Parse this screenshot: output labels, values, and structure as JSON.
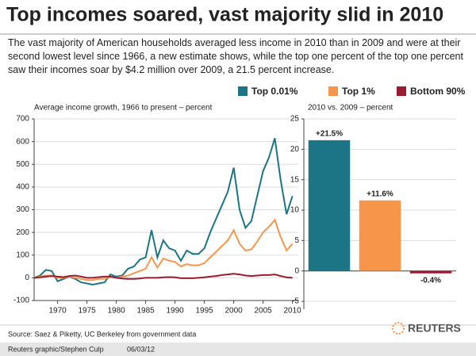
{
  "title": "Top incomes soared, vast majority slid in 2010",
  "subtitle": "The vast majority of American households averaged less income in 2010 than in 2009 and were at their second lowest level since 1966, a new estimate shows, while the top one percent of the top one percent saw their incomes soar by $4.2 million over 2009, a 21.5 percent increase.",
  "source": "Source: Saez & Piketty, UC Berkeley from government data",
  "logo": "REUTERS",
  "credit": "Reuters graphic/Stephen Culp",
  "date": "06/03/12",
  "chart_data": [
    {
      "type": "line",
      "title": "Average income growth, 1966 to present – percent",
      "x": [
        1966,
        1967,
        1968,
        1969,
        1970,
        1971,
        1972,
        1973,
        1974,
        1975,
        1976,
        1977,
        1978,
        1979,
        1980,
        1981,
        1982,
        1983,
        1984,
        1985,
        1986,
        1987,
        1988,
        1989,
        1990,
        1991,
        1992,
        1993,
        1994,
        1995,
        1996,
        1997,
        1998,
        1999,
        2000,
        2001,
        2002,
        2003,
        2004,
        2005,
        2006,
        2007,
        2008,
        2009,
        2010
      ],
      "series": [
        {
          "name": "Top 0.01%",
          "color": "#1b7585",
          "values": [
            0,
            10,
            35,
            30,
            -15,
            -5,
            5,
            -5,
            -20,
            -25,
            -30,
            -25,
            -20,
            15,
            5,
            10,
            40,
            50,
            80,
            90,
            210,
            90,
            165,
            130,
            120,
            75,
            120,
            105,
            105,
            130,
            200,
            260,
            320,
            380,
            485,
            300,
            220,
            250,
            360,
            470,
            530,
            615,
            430,
            280,
            360
          ]
        },
        {
          "name": "Top 1%",
          "color": "#f7964a",
          "values": [
            0,
            5,
            10,
            10,
            0,
            0,
            5,
            0,
            -5,
            -10,
            -10,
            -5,
            -5,
            5,
            0,
            5,
            10,
            20,
            30,
            40,
            90,
            45,
            85,
            75,
            70,
            50,
            60,
            55,
            55,
            65,
            90,
            115,
            140,
            165,
            210,
            150,
            120,
            125,
            160,
            200,
            225,
            255,
            180,
            120,
            150
          ]
        },
        {
          "name": "Bottom 90%",
          "color": "#9b1b30",
          "values": [
            0,
            2,
            5,
            8,
            5,
            3,
            8,
            10,
            5,
            0,
            0,
            3,
            5,
            5,
            0,
            -3,
            -5,
            -5,
            -3,
            0,
            0,
            0,
            2,
            3,
            2,
            -2,
            -2,
            -2,
            0,
            2,
            5,
            8,
            12,
            15,
            18,
            15,
            10,
            8,
            10,
            12,
            12,
            15,
            8,
            2,
            0
          ]
        }
      ],
      "xlim": [
        1966,
        2011
      ],
      "xticks": [
        1970,
        1975,
        1980,
        1985,
        1990,
        1995,
        2000,
        2005,
        2010
      ],
      "ylim": [
        -100,
        700
      ],
      "yticks": [
        -100,
        0,
        100,
        200,
        300,
        400,
        500,
        600,
        700
      ],
      "grid": true,
      "legend": "top-right"
    },
    {
      "type": "bar",
      "title": "2010 vs. 2009 – percent",
      "categories": [
        null,
        null,
        null
      ],
      "values": [
        21.5,
        11.6,
        -0.4
      ],
      "value_labels": [
        "+21.5%",
        "+11.6%",
        "-0.4%"
      ],
      "colors": [
        "#1b7585",
        "#f7964a",
        "#9b1b30"
      ],
      "ylim": [
        -6.3,
        25
      ],
      "yticks": [
        -5,
        0,
        5,
        10,
        15,
        20,
        25
      ],
      "grid": true
    }
  ]
}
